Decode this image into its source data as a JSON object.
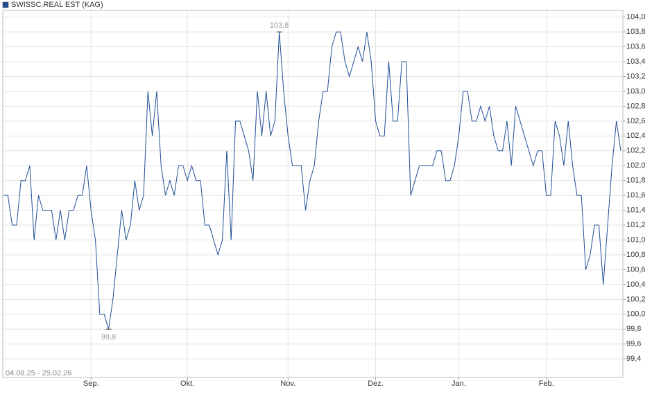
{
  "chart_data": {
    "type": "line",
    "series": [
      {
        "name": "SWISSC.REAL EST (KAG)",
        "color": "#1f4e96",
        "values": [
          101.6,
          101.6,
          101.2,
          101.2,
          101.8,
          101.8,
          102.0,
          101.0,
          101.6,
          101.4,
          101.4,
          101.4,
          101.0,
          101.4,
          101.0,
          101.4,
          101.4,
          101.6,
          101.6,
          102.0,
          101.4,
          101.0,
          100.0,
          100.0,
          99.8,
          100.2,
          100.8,
          101.4,
          101.0,
          101.2,
          101.8,
          101.4,
          101.6,
          103.0,
          102.4,
          103.0,
          102.0,
          101.6,
          101.8,
          101.6,
          102.0,
          102.0,
          101.8,
          102.0,
          101.8,
          101.8,
          101.2,
          101.2,
          101.0,
          100.8,
          101.0,
          102.2,
          101.0,
          102.6,
          102.6,
          102.4,
          102.2,
          101.8,
          103.0,
          102.4,
          103.0,
          102.4,
          102.6,
          103.8,
          103.0,
          102.4,
          102.0,
          102.0,
          102.0,
          101.4,
          101.8,
          102.0,
          102.6,
          103.0,
          103.0,
          103.6,
          103.8,
          103.8,
          103.4,
          103.2,
          103.4,
          103.6,
          103.4,
          103.8,
          103.4,
          102.6,
          102.4,
          102.4,
          103.4,
          102.6,
          102.6,
          103.4,
          103.4,
          101.6,
          101.8,
          102.0,
          102.0,
          102.0,
          102.0,
          102.2,
          102.2,
          101.8,
          101.8,
          102.0,
          102.4,
          103.0,
          103.0,
          102.6,
          102.6,
          102.8,
          102.6,
          102.8,
          102.4,
          102.2,
          102.2,
          102.6,
          102.0,
          102.8,
          102.6,
          102.4,
          102.2,
          102.0,
          102.2,
          102.2,
          101.6,
          101.6,
          102.6,
          102.4,
          102.0,
          102.6,
          102.0,
          101.6,
          101.6,
          100.6,
          100.8,
          101.2,
          101.2,
          100.4,
          101.2,
          102.0,
          102.6,
          102.2
        ]
      }
    ],
    "extremes": {
      "max": "103,8",
      "min": "99,8"
    },
    "date_range": "04.08.25 - 25.02.26",
    "xlim": [
      0,
      141
    ],
    "xticks": [
      {
        "value": 20,
        "label": "Sep."
      },
      {
        "value": 42,
        "label": "Okt."
      },
      {
        "value": 65,
        "label": "Nov."
      },
      {
        "value": 85,
        "label": "Dez."
      },
      {
        "value": 104,
        "label": "Jan."
      },
      {
        "value": 124,
        "label": "Feb."
      }
    ],
    "ylim": [
      99.15,
      104.09
    ],
    "yticks": [
      {
        "value": 99.4,
        "label": "99,4"
      },
      {
        "value": 99.6,
        "label": "99,6"
      },
      {
        "value": 99.8,
        "label": "99,8"
      },
      {
        "value": 100.0,
        "label": "100,0"
      },
      {
        "value": 100.2,
        "label": "100,2"
      },
      {
        "value": 100.4,
        "label": "100,4"
      },
      {
        "value": 100.6,
        "label": "100,6"
      },
      {
        "value": 100.8,
        "label": "100,8"
      },
      {
        "value": 101.0,
        "label": "101,0"
      },
      {
        "value": 101.2,
        "label": "101,2"
      },
      {
        "value": 101.4,
        "label": "101,4"
      },
      {
        "value": 101.6,
        "label": "101,6"
      },
      {
        "value": 101.8,
        "label": "101,8"
      },
      {
        "value": 102.0,
        "label": "102,0"
      },
      {
        "value": 102.2,
        "label": "102,2"
      },
      {
        "value": 102.4,
        "label": "102,4"
      },
      {
        "value": 102.6,
        "label": "102,6"
      },
      {
        "value": 102.8,
        "label": "102,8"
      },
      {
        "value": 103.0,
        "label": "103,0"
      },
      {
        "value": 103.2,
        "label": "103,2"
      },
      {
        "value": 103.4,
        "label": "103,4"
      },
      {
        "value": 103.6,
        "label": "103,6"
      },
      {
        "value": 103.8,
        "label": "103,8"
      },
      {
        "value": 104.0,
        "label": "104,0"
      }
    ],
    "grid": true
  }
}
